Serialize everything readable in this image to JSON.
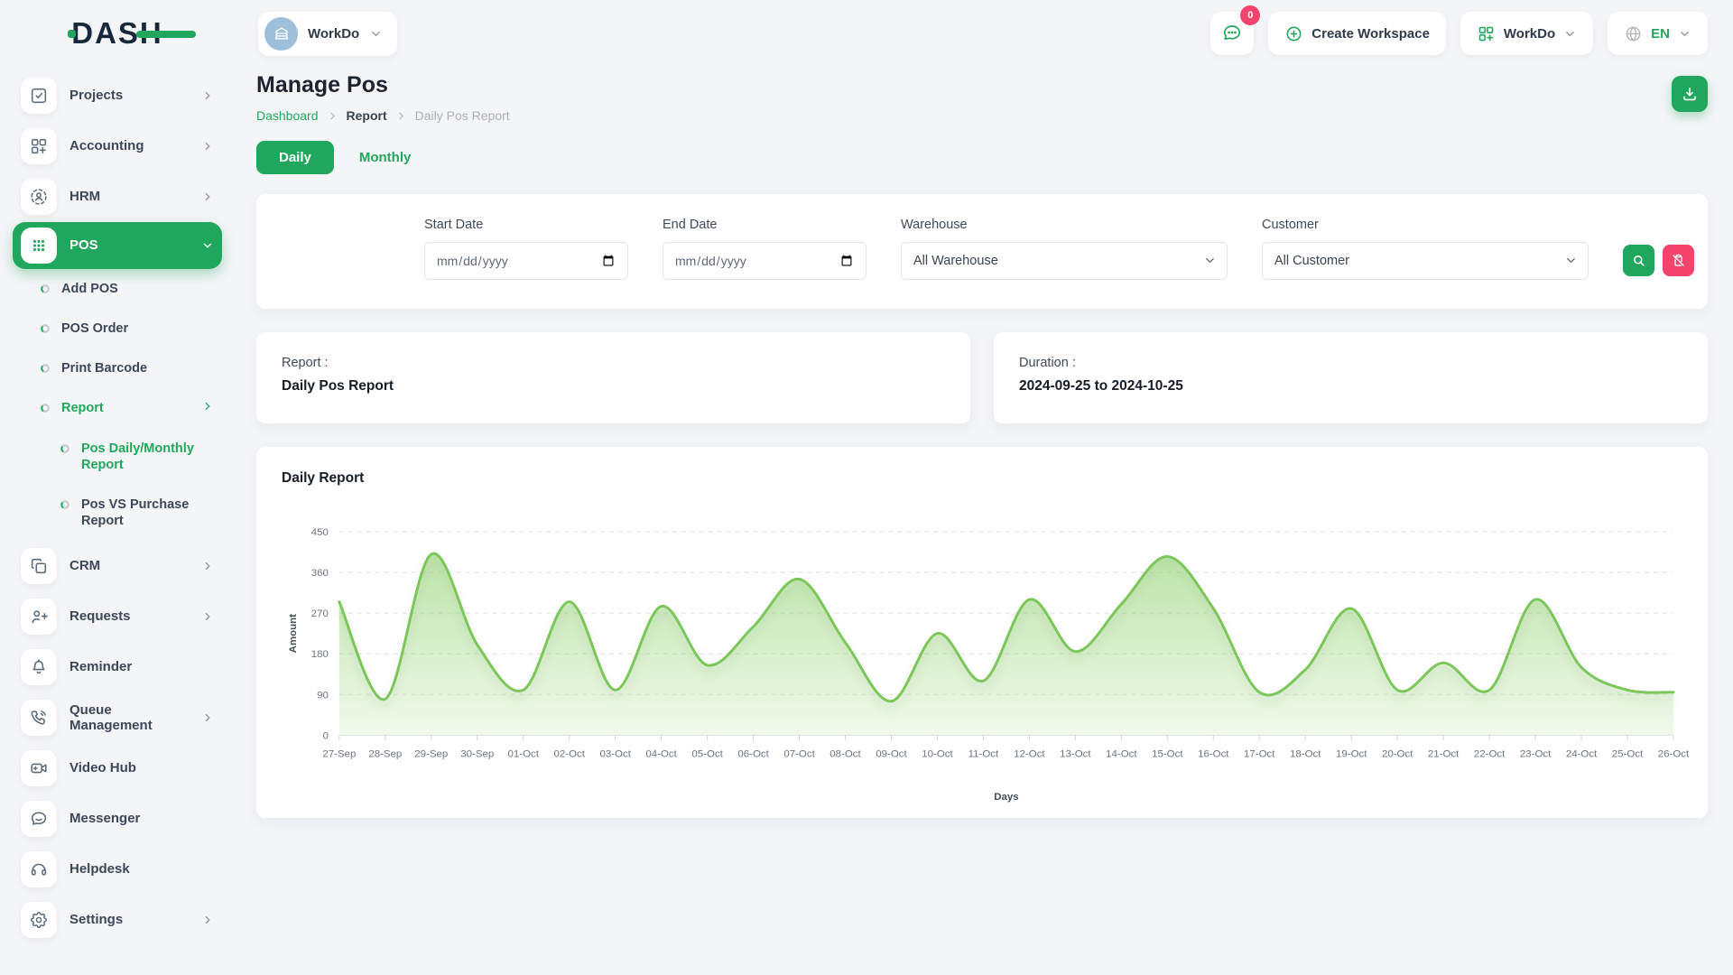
{
  "brand": {
    "logo_text": "DASH"
  },
  "header": {
    "workspace_name": "WorkDo",
    "messages_badge": "0",
    "create_workspace_label": "Create Workspace",
    "workspace_dropdown_label": "WorkDo",
    "language": "EN"
  },
  "sidebar": {
    "items": [
      {
        "label": "Projects"
      },
      {
        "label": "Accounting"
      },
      {
        "label": "HRM"
      },
      {
        "label": "POS"
      },
      {
        "label": "Add POS"
      },
      {
        "label": "POS Order"
      },
      {
        "label": "Print Barcode"
      },
      {
        "label": "Report"
      },
      {
        "label": "Pos Daily/Monthly Report"
      },
      {
        "label": "Pos VS Purchase Report"
      },
      {
        "label": "CRM"
      },
      {
        "label": "Requests"
      },
      {
        "label": "Reminder"
      },
      {
        "label": "Queue Management"
      },
      {
        "label": "Video Hub"
      },
      {
        "label": "Messenger"
      },
      {
        "label": "Helpdesk"
      },
      {
        "label": "Settings"
      }
    ]
  },
  "page": {
    "title": "Manage Pos",
    "breadcrumb": [
      "Dashboard",
      "Report",
      "Daily Pos Report"
    ],
    "tab_daily": "Daily",
    "tab_monthly": "Monthly"
  },
  "filters": {
    "start_date": {
      "label": "Start Date",
      "placeholder": "mm/dd/yyyy"
    },
    "end_date": {
      "label": "End Date",
      "placeholder": "mm/dd/yyyy"
    },
    "warehouse": {
      "label": "Warehouse",
      "value": "All Warehouse"
    },
    "customer": {
      "label": "Customer",
      "value": "All Customer"
    }
  },
  "summary": {
    "report_label": "Report :",
    "report_value": "Daily Pos Report",
    "duration_label": "Duration :",
    "duration_value": "2024-09-25 to 2024-10-25"
  },
  "chart_card": {
    "title": "Daily Report"
  },
  "chart_data": {
    "type": "area",
    "title": "Daily Report",
    "x": [
      "27-Sep",
      "28-Sep",
      "29-Sep",
      "30-Sep",
      "01-Oct",
      "02-Oct",
      "03-Oct",
      "04-Oct",
      "05-Oct",
      "06-Oct",
      "07-Oct",
      "08-Oct",
      "09-Oct",
      "10-Oct",
      "11-Oct",
      "12-Oct",
      "13-Oct",
      "14-Oct",
      "15-Oct",
      "16-Oct",
      "17-Oct",
      "18-Oct",
      "19-Oct",
      "20-Oct",
      "21-Oct",
      "22-Oct",
      "23-Oct",
      "24-Oct",
      "25-Oct",
      "26-Oct"
    ],
    "values": [
      295,
      80,
      400,
      200,
      100,
      295,
      100,
      285,
      155,
      240,
      345,
      205,
      75,
      225,
      120,
      300,
      185,
      290,
      395,
      280,
      95,
      145,
      280,
      100,
      160,
      100,
      300,
      150,
      100,
      95
    ],
    "xlabel": "Days",
    "ylabel": "Amount",
    "ylim": [
      0,
      450
    ],
    "yticks": [
      0,
      90,
      180,
      270,
      360,
      450
    ],
    "grid": "dashed-horizontal",
    "legend": "none",
    "line_color": "#7bc65a",
    "fill": "green-gradient"
  },
  "colors": {
    "primary_green": "#21a75d",
    "danger_pink": "#f4436c",
    "chart_line": "#7bc65a",
    "page_background": "#f4f5f7"
  },
  "icon_names": {
    "messages": "chat-bubble-dots",
    "create_workspace": "plus-circle",
    "workspace_apps": "grid-plus",
    "language": "globe",
    "download": "download-tray",
    "search": "magnifier",
    "reset": "clipboard-off",
    "projects": "checkbox-check",
    "accounting": "grid-plus",
    "hrm": "user-dashed-circle",
    "pos": "dots-grid",
    "crm": "overlapping-squares",
    "requests": "user-plus",
    "reminder": "bell",
    "queue_management": "phone-call",
    "video_hub": "video-camera-plus",
    "messenger": "chat-bubble",
    "helpdesk": "headset",
    "settings": "gear"
  }
}
